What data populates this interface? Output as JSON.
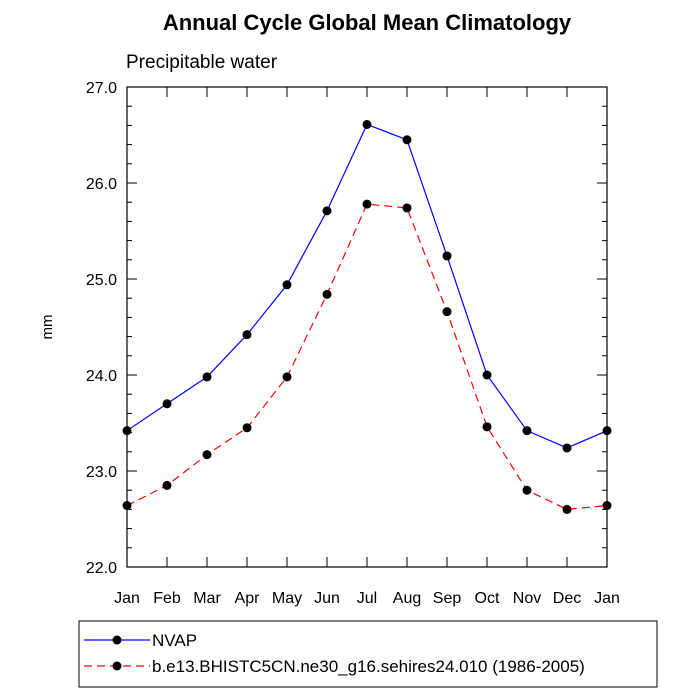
{
  "chart_data": {
    "type": "line",
    "title": "Annual Cycle Global Mean Climatology",
    "subtitle": "Precipitable water",
    "xlabel": "",
    "ylabel": "mm",
    "categories": [
      "Jan",
      "Feb",
      "Mar",
      "Apr",
      "May",
      "Jun",
      "Jul",
      "Aug",
      "Sep",
      "Oct",
      "Nov",
      "Dec",
      "Jan"
    ],
    "ylim": [
      22.0,
      27.0
    ],
    "yticks": [
      "22.0",
      "23.0",
      "24.0",
      "25.0",
      "26.0",
      "27.0"
    ],
    "grid": false,
    "legend_position": "bottom",
    "series": [
      {
        "name": "NVAP",
        "color": "#0000ff",
        "line_style": "solid",
        "marker": "filled-circle",
        "values": [
          23.42,
          23.7,
          23.98,
          24.42,
          24.94,
          25.71,
          26.61,
          26.45,
          25.24,
          24.0,
          23.42,
          23.24,
          23.42
        ]
      },
      {
        "name": "b.e13.BHISTC5CN.ne30_g16.sehires24.010 (1986-2005)",
        "color": "#ff0000",
        "line_style": "dashed",
        "marker": "filled-circle",
        "values": [
          22.64,
          22.85,
          23.17,
          23.45,
          23.98,
          24.84,
          25.78,
          25.74,
          24.66,
          23.46,
          22.8,
          22.6,
          22.64
        ]
      }
    ]
  }
}
